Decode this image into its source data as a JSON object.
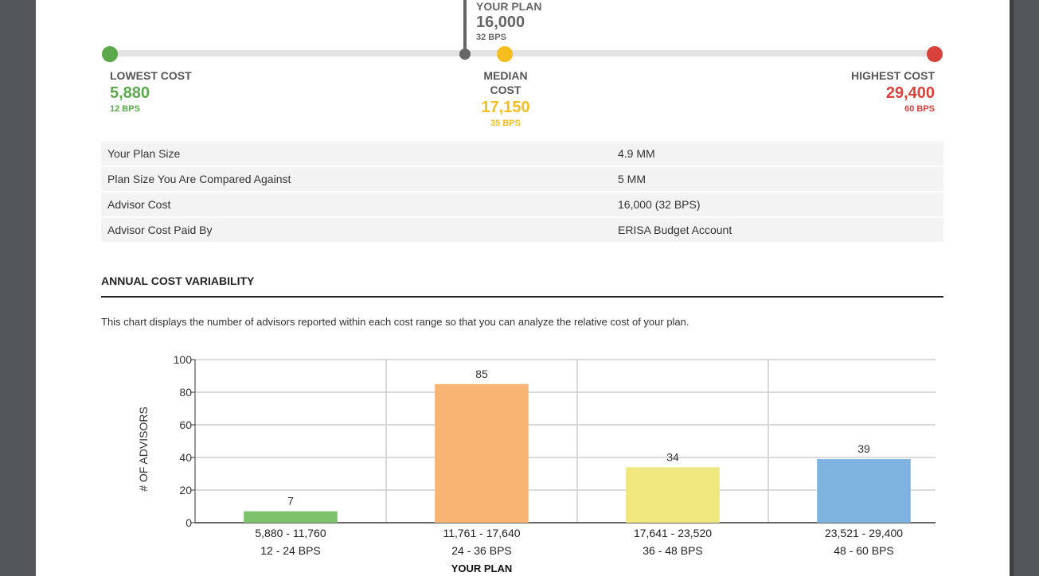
{
  "slider": {
    "your_plan": {
      "title": "YOUR PLAN",
      "value": "16,000",
      "bps": "32 BPS"
    },
    "lowest": {
      "title": "LOWEST COST",
      "value": "5,880",
      "bps": "12 BPS",
      "color": "#5aa94a"
    },
    "median": {
      "title": "MEDIAN COST",
      "value": "17,150",
      "bps": "35 BPS",
      "color": "#f5bd1f"
    },
    "highest": {
      "title": "HIGHEST COST",
      "value": "29,400",
      "bps": "60 BPS",
      "color": "#d9413b"
    }
  },
  "info_table": [
    {
      "label": "Your Plan Size",
      "value": "4.9 MM"
    },
    {
      "label": "Plan Size You Are Compared Against",
      "value": "5 MM"
    },
    {
      "label": "Advisor Cost",
      "value": "16,000 (32 BPS)"
    },
    {
      "label": "Advisor Cost Paid By",
      "value": "ERISA Budget Account"
    }
  ],
  "section": {
    "title": "ANNUAL COST VARIABILITY",
    "description": "This chart displays the number of advisors reported within each cost range so that you can analyze the relative cost of your plan."
  },
  "chart_data": {
    "type": "bar",
    "ylabel": "# OF ADVISORS",
    "xlabel": "",
    "ylim": [
      0,
      100
    ],
    "yticks": [
      0,
      20,
      40,
      60,
      80,
      100
    ],
    "grid": true,
    "categories": [
      "5,880 - 11,760",
      "11,761 - 17,640",
      "17,641 - 23,520",
      "23,521 - 29,400"
    ],
    "category_bps": [
      "12 - 24 BPS",
      "24 - 36 BPS",
      "36 - 48 BPS",
      "48 - 60 BPS"
    ],
    "values": [
      7,
      85,
      34,
      39
    ],
    "colors": [
      "#7cc36b",
      "#f9b474",
      "#eee87f",
      "#7fb3df"
    ],
    "highlight_label": "YOUR PLAN",
    "highlight_index": 1
  }
}
